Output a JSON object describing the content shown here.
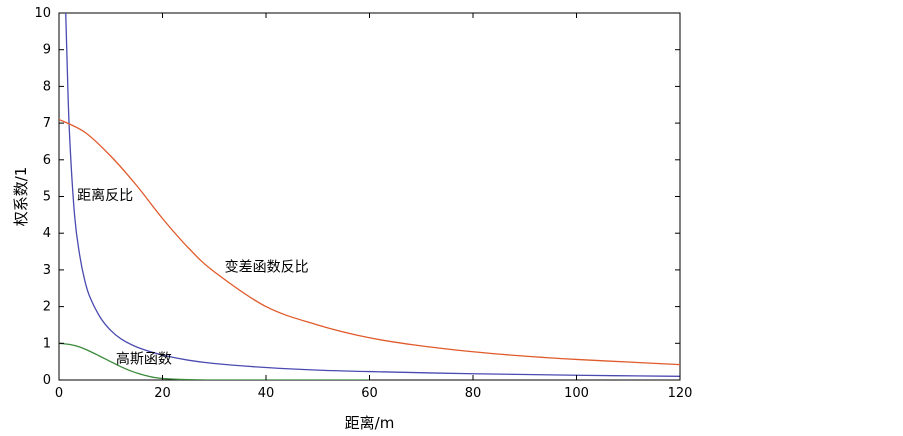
{
  "chart_data": {
    "type": "line",
    "title": "",
    "xlabel": "距离/m",
    "ylabel": "权系数/1",
    "xlim": [
      0,
      120
    ],
    "ylim": [
      0,
      10
    ],
    "x_ticks": [
      0,
      20,
      40,
      60,
      80,
      100,
      120
    ],
    "y_ticks": [
      0,
      1,
      2,
      3,
      4,
      5,
      6,
      7,
      8,
      9,
      10
    ],
    "grid": false,
    "legend": "none",
    "series": [
      {
        "name": "距离反比",
        "color": "#4a4ab0",
        "x": [
          1.3,
          1.5,
          2,
          3,
          4,
          5,
          6,
          8,
          10,
          12,
          15,
          20,
          25,
          30,
          40,
          50,
          60,
          80,
          100,
          120
        ],
        "y": [
          10,
          9.0,
          6.8,
          4.5,
          3.4,
          2.7,
          2.25,
          1.7,
          1.35,
          1.12,
          0.9,
          0.68,
          0.54,
          0.45,
          0.34,
          0.27,
          0.23,
          0.17,
          0.13,
          0.1
        ]
      },
      {
        "name": "变差函数反比",
        "color": "#e05a2a",
        "x": [
          0,
          5,
          10,
          15,
          20,
          25,
          30,
          40,
          50,
          60,
          70,
          80,
          90,
          100,
          110,
          120
        ],
        "y": [
          7.1,
          6.75,
          6.1,
          5.3,
          4.4,
          3.6,
          2.95,
          2.0,
          1.5,
          1.15,
          0.93,
          0.77,
          0.65,
          0.56,
          0.49,
          0.42
        ]
      },
      {
        "name": "高斯函数",
        "color": "#3a8a3a",
        "x": [
          0,
          2,
          4,
          6,
          8,
          10,
          12,
          14,
          16,
          18,
          20,
          25,
          30,
          40,
          50,
          60
        ],
        "y": [
          1.0,
          0.97,
          0.9,
          0.78,
          0.64,
          0.5,
          0.36,
          0.24,
          0.15,
          0.08,
          0.04,
          0.01,
          0.0,
          0.0,
          0.0,
          0.0
        ]
      }
    ],
    "annotations": [
      {
        "text": "距离反比",
        "x": 3.5,
        "y": 4.9
      },
      {
        "text": "变差函数反比",
        "x": 32,
        "y": 2.95
      },
      {
        "text": "高斯函数",
        "x": 11,
        "y": 0.45
      }
    ]
  }
}
